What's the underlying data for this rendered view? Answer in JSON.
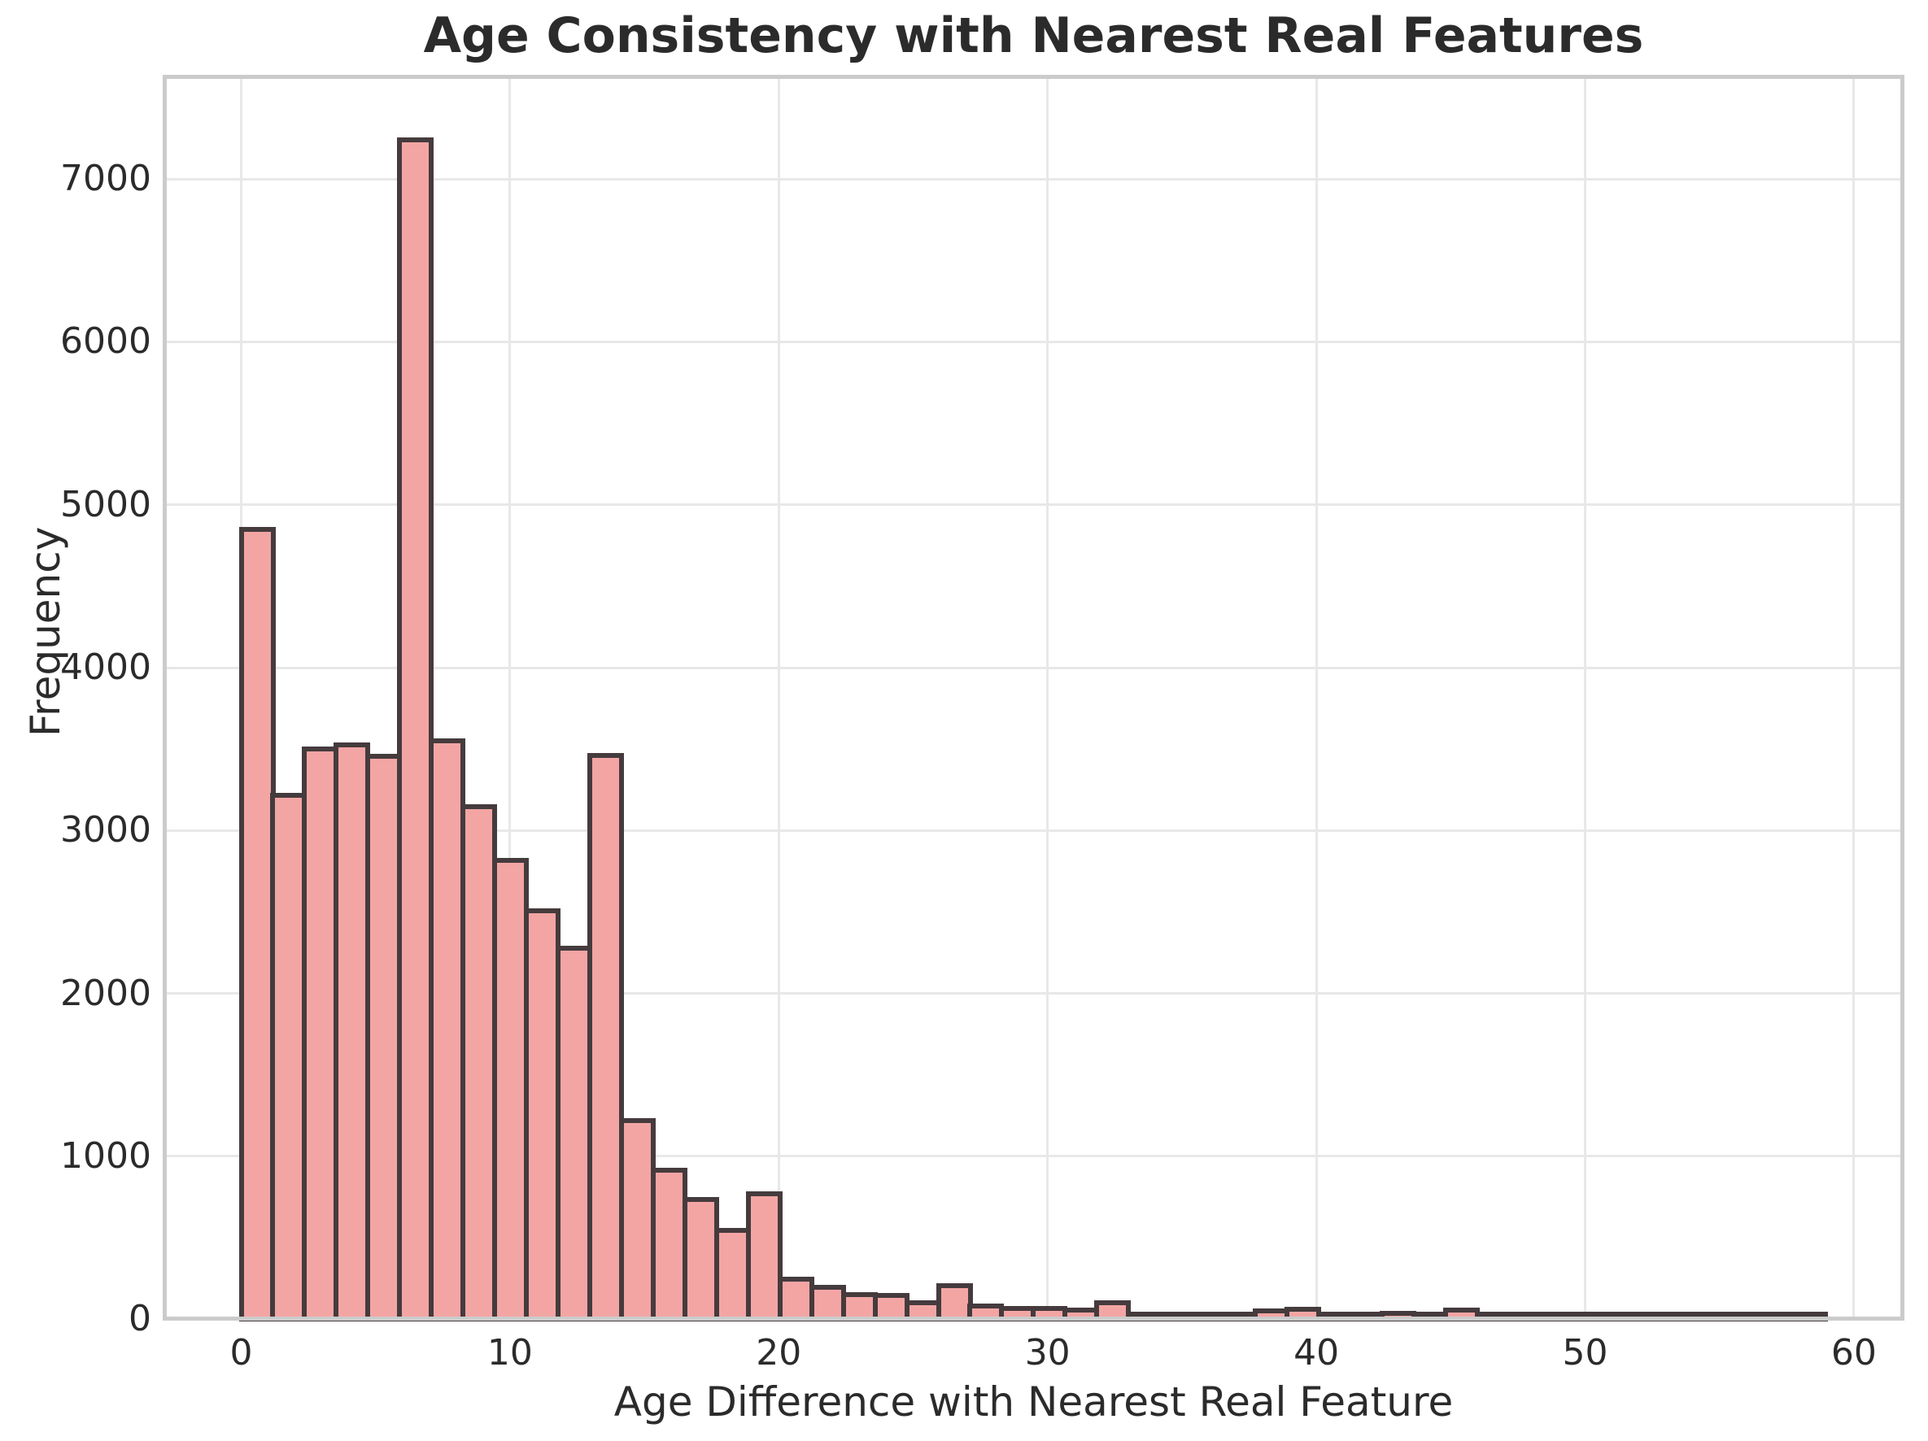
{
  "title": "Age Consistency with Nearest Real Features",
  "axes": {
    "xlabel": "Age Difference with Nearest Real Feature",
    "ylabel": "Frequency",
    "x_ticks": [
      0,
      10,
      20,
      30,
      40,
      50,
      60
    ],
    "y_ticks": [
      0,
      1000,
      2000,
      3000,
      4000,
      5000,
      6000,
      7000
    ]
  },
  "colors": {
    "bar_fill": "#f3a5a4",
    "bar_edge": "#453b3d",
    "grid": "#e8e8e8",
    "spine": "#cbcbcb",
    "text": "#2b2b2b",
    "background": "#ffffff"
  },
  "chart_data": {
    "type": "bar",
    "subtype": "histogram",
    "title": "Age Consistency with Nearest Real Features",
    "xlabel": "Age Difference with Nearest Real Feature",
    "ylabel": "Frequency",
    "bin_start": 0,
    "bin_width": 1.179,
    "n_bins": 50,
    "xlim": [
      -2.86,
      61.82
    ],
    "ylim": [
      0,
      7630
    ],
    "grid": "both",
    "legend": "none",
    "values": [
      4850,
      3215,
      3500,
      3525,
      3455,
      7240,
      3550,
      3145,
      2815,
      2505,
      2275,
      3460,
      1220,
      915,
      735,
      545,
      770,
      245,
      195,
      150,
      143,
      100,
      205,
      80,
      63,
      65,
      56,
      98,
      23,
      15,
      27,
      21,
      51,
      60,
      21,
      13,
      35,
      13,
      57,
      13,
      27,
      5,
      14,
      5,
      16,
      5,
      8,
      2,
      7,
      7
    ]
  }
}
